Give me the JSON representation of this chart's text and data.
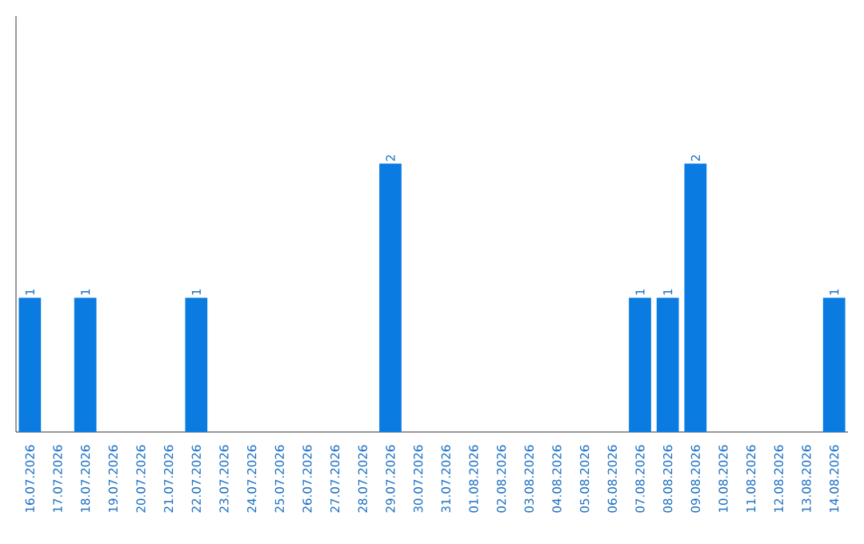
{
  "chart_data": {
    "type": "bar",
    "categories": [
      "16.07.2026",
      "17.07.2026",
      "18.07.2026",
      "19.07.2026",
      "20.07.2026",
      "21.07.2026",
      "22.07.2026",
      "23.07.2026",
      "24.07.2026",
      "25.07.2026",
      "26.07.2026",
      "27.07.2026",
      "28.07.2026",
      "29.07.2026",
      "30.07.2026",
      "31.07.2026",
      "01.08.2026",
      "02.08.2026",
      "03.08.2026",
      "04.08.2026",
      "05.08.2026",
      "06.08.2026",
      "07.08.2026",
      "08.08.2026",
      "09.08.2026",
      "10.08.2026",
      "11.08.2026",
      "12.08.2026",
      "13.08.2026",
      "14.08.2026"
    ],
    "values": [
      1,
      0,
      1,
      0,
      0,
      0,
      1,
      0,
      0,
      0,
      0,
      0,
      0,
      2,
      0,
      0,
      0,
      0,
      0,
      0,
      0,
      0,
      1,
      1,
      2,
      0,
      0,
      0,
      0,
      1
    ],
    "value_labels": [
      "1",
      null,
      "1",
      null,
      null,
      null,
      "1",
      null,
      null,
      null,
      null,
      null,
      null,
      "2",
      null,
      null,
      null,
      null,
      null,
      null,
      null,
      null,
      "1",
      "1",
      "2",
      null,
      null,
      null,
      null,
      "1"
    ],
    "color": "#0a7be0",
    "ylim": [
      0,
      3.1
    ],
    "tick_labels": "x"
  }
}
